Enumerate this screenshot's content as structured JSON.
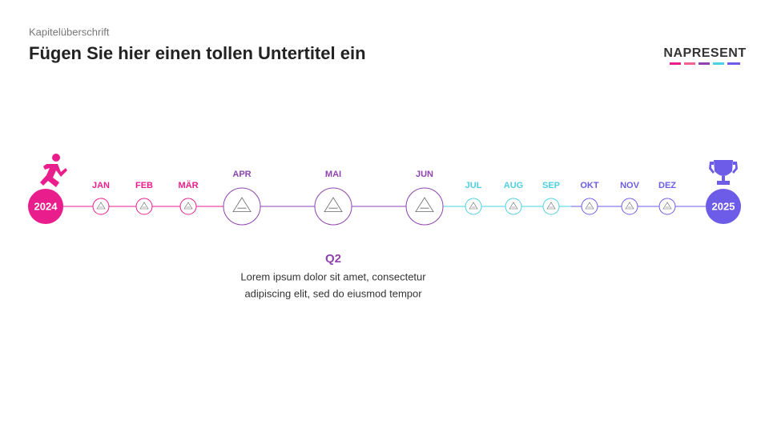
{
  "header": {
    "kicker": "Kapitelüberschrift",
    "title": "Fügen Sie hier einen tollen Untertitel ein",
    "logo": "NAPRESENT"
  },
  "timeline": {
    "start": "2024",
    "end": "2025",
    "months": [
      "JAN",
      "FEB",
      "MÄR",
      "APR",
      "MAI",
      "JUN",
      "JUL",
      "AUG",
      "SEP",
      "OKT",
      "NOV",
      "DEZ"
    ]
  },
  "highlight": {
    "title": "Q2",
    "lines": [
      "Lorem ipsum dolor sit amet, consectetur",
      "adipiscing elit, sed do eiusmod tempor"
    ]
  }
}
